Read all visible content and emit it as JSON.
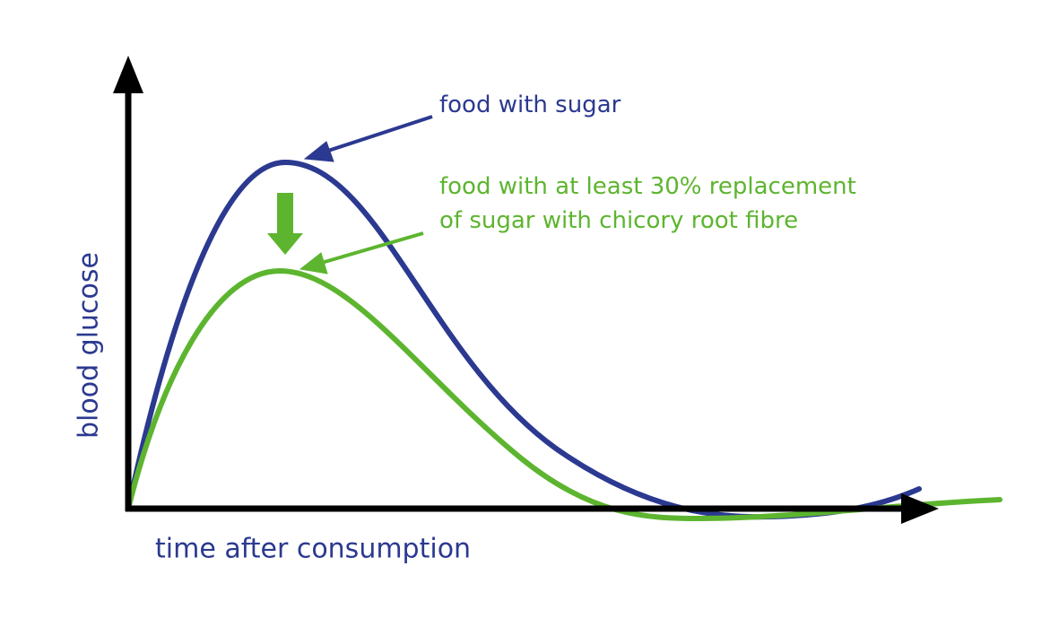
{
  "axes": {
    "y_label": "blood glucose",
    "x_label": "time after consumption"
  },
  "curves": [
    {
      "label": [
        "food with sugar"
      ],
      "color": "#2b3990"
    },
    {
      "label": [
        "food with at least 30% replacement",
        "of sugar with chicory root fibre"
      ],
      "color": "#5db52f"
    }
  ]
}
